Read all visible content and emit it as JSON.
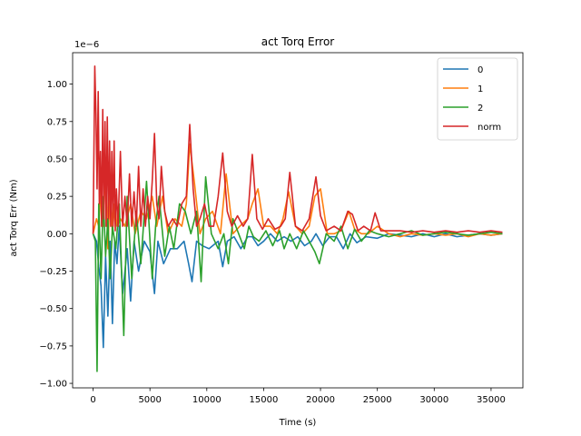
{
  "chart_data": {
    "type": "line",
    "title": "act Torq Error",
    "xlabel": "Time (s)",
    "ylabel": "act Torq Err (Nm)",
    "y_offset_text": "1e−6",
    "xlim": [
      -1800,
      37800
    ],
    "ylim": [
      -1.03,
      1.21
    ],
    "xticks": [
      0,
      5000,
      10000,
      15000,
      20000,
      25000,
      30000,
      35000
    ],
    "xtick_labels": [
      "0",
      "5000",
      "10000",
      "15000",
      "20000",
      "25000",
      "30000",
      "35000"
    ],
    "yticks": [
      -1.0,
      -0.75,
      -0.5,
      -0.25,
      0.0,
      0.25,
      0.5,
      0.75,
      1.0
    ],
    "ytick_labels": [
      "−1.00",
      "−0.75",
      "−0.50",
      "−0.25",
      "0.00",
      "0.25",
      "0.50",
      "0.75",
      "1.00"
    ],
    "grid": false,
    "legend_position": "top-right",
    "series": [
      {
        "name": "0",
        "color": "#1f77b4",
        "x": [
          0,
          300,
          500,
          700,
          900,
          1100,
          1300,
          1500,
          1700,
          1900,
          2100,
          2300,
          2600,
          3000,
          3300,
          3600,
          4000,
          4500,
          5000,
          5400,
          5700,
          6200,
          6800,
          7400,
          8000,
          8400,
          8700,
          9100,
          9600,
          10200,
          11000,
          11400,
          11800,
          12400,
          13000,
          13600,
          14000,
          14500,
          15000,
          15600,
          16200,
          16800,
          17400,
          18000,
          18600,
          19200,
          19600,
          20200,
          20800,
          21400,
          22000,
          22600,
          23200,
          24000,
          25000,
          26000,
          27000,
          28000,
          29000,
          30000,
          31000,
          32000,
          33000,
          34000,
          35000,
          36000
        ],
        "values": [
          0.0,
          -0.05,
          -0.22,
          -0.35,
          -0.76,
          -0.15,
          -0.55,
          -0.05,
          -0.6,
          -0.05,
          -0.2,
          0.05,
          -0.4,
          -0.1,
          -0.45,
          -0.05,
          -0.25,
          -0.05,
          -0.12,
          -0.4,
          -0.05,
          -0.2,
          -0.1,
          -0.1,
          -0.05,
          -0.2,
          -0.32,
          -0.05,
          -0.08,
          -0.1,
          -0.05,
          -0.22,
          -0.05,
          -0.02,
          -0.1,
          -0.02,
          -0.02,
          -0.08,
          -0.05,
          0.0,
          -0.05,
          -0.02,
          -0.05,
          -0.02,
          -0.08,
          -0.05,
          0.0,
          -0.08,
          -0.02,
          -0.02,
          -0.1,
          0.0,
          -0.06,
          -0.02,
          -0.03,
          0.0,
          -0.01,
          -0.02,
          0.0,
          -0.02,
          0.0,
          -0.02,
          -0.01,
          0.0,
          -0.01,
          0.0
        ]
      },
      {
        "name": "1",
        "color": "#ff7f0e",
        "x": [
          0,
          300,
          500,
          700,
          900,
          1100,
          1300,
          1500,
          1700,
          1900,
          2100,
          2400,
          2800,
          3300,
          3700,
          4200,
          4700,
          5200,
          5600,
          6100,
          6600,
          7200,
          7800,
          8200,
          8500,
          8900,
          9400,
          9900,
          10500,
          11200,
          11700,
          12300,
          12900,
          13600,
          14000,
          14500,
          15000,
          15600,
          16200,
          16700,
          17200,
          17800,
          18400,
          19000,
          19500,
          20000,
          20600,
          21200,
          21800,
          22500,
          23000,
          23600,
          24200,
          25000,
          26000,
          27000,
          28000,
          29000,
          30000,
          31000,
          32000,
          33000,
          34000,
          35000,
          36000
        ],
        "values": [
          0.0,
          0.1,
          0.05,
          0.3,
          0.05,
          0.45,
          -0.1,
          0.3,
          0.0,
          0.2,
          0.05,
          0.1,
          0.05,
          0.2,
          0.0,
          0.15,
          0.1,
          0.25,
          0.05,
          0.25,
          0.0,
          0.1,
          0.05,
          0.2,
          0.6,
          0.35,
          0.0,
          0.1,
          0.15,
          0.0,
          0.4,
          0.0,
          0.05,
          0.1,
          0.2,
          0.3,
          0.05,
          0.05,
          0.0,
          0.1,
          0.28,
          0.05,
          0.0,
          0.05,
          0.25,
          0.3,
          0.0,
          0.0,
          0.02,
          0.15,
          0.03,
          0.0,
          0.0,
          0.05,
          0.0,
          -0.02,
          0.0,
          -0.01,
          0.0,
          -0.01,
          0.0,
          -0.02,
          0.0,
          -0.01,
          0.0
        ]
      },
      {
        "name": "2",
        "color": "#2ca02c",
        "x": [
          0,
          200,
          350,
          500,
          700,
          900,
          1100,
          1300,
          1500,
          1700,
          2000,
          2300,
          2700,
          3000,
          3400,
          3800,
          4200,
          4700,
          5200,
          5500,
          5800,
          6300,
          6700,
          7100,
          7600,
          8100,
          8600,
          9100,
          9500,
          9900,
          10400,
          11000,
          11500,
          11900,
          12300,
          12800,
          13300,
          13700,
          14100,
          14600,
          15200,
          15800,
          16400,
          16800,
          17300,
          17900,
          18500,
          19000,
          19500,
          19900,
          20500,
          21200,
          21800,
          22400,
          23000,
          23600,
          24300,
          25000,
          26000,
          27000,
          28000,
          29000,
          30000,
          31000,
          32000,
          33000,
          34000,
          35000,
          36000
        ],
        "values": [
          0.0,
          -0.05,
          -0.92,
          0.2,
          -0.3,
          0.25,
          -0.15,
          0.1,
          -0.3,
          0.05,
          -0.1,
          0.2,
          -0.68,
          0.25,
          -0.3,
          0.15,
          -0.2,
          0.35,
          -0.3,
          0.05,
          0.25,
          -0.15,
          0.05,
          -0.1,
          0.2,
          0.15,
          0.0,
          0.15,
          -0.32,
          0.38,
          0.0,
          -0.1,
          0.0,
          -0.2,
          0.1,
          0.0,
          -0.1,
          0.05,
          -0.02,
          -0.05,
          0.02,
          -0.08,
          0.02,
          -0.1,
          0.0,
          -0.1,
          0.02,
          -0.05,
          -0.12,
          -0.2,
          0.0,
          -0.05,
          0.05,
          -0.1,
          0.03,
          -0.05,
          0.02,
          0.0,
          -0.02,
          0.0,
          0.02,
          -0.01,
          0.0,
          0.01,
          0.0,
          -0.01,
          0.0,
          0.01,
          0.0
        ]
      },
      {
        "name": "norm",
        "color": "#d62728",
        "x": [
          0,
          150,
          250,
          350,
          450,
          550,
          650,
          750,
          850,
          950,
          1050,
          1150,
          1250,
          1350,
          1450,
          1550,
          1650,
          1750,
          1850,
          1950,
          2050,
          2200,
          2400,
          2600,
          2800,
          3000,
          3200,
          3400,
          3600,
          3800,
          4000,
          4200,
          4400,
          4600,
          4800,
          5000,
          5200,
          5400,
          5600,
          5800,
          6000,
          6300,
          6600,
          7000,
          7400,
          7800,
          8200,
          8500,
          8800,
          9100,
          9400,
          9800,
          10200,
          10600,
          11000,
          11400,
          11800,
          12200,
          12700,
          13200,
          13600,
          14000,
          14400,
          14900,
          15400,
          16000,
          16500,
          16900,
          17300,
          17800,
          18400,
          19000,
          19600,
          20000,
          20500,
          21200,
          21800,
          22400,
          22800,
          23300,
          23800,
          24400,
          24800,
          25300,
          26000,
          27000,
          28000,
          29000,
          30000,
          31000,
          32000,
          33000,
          34000,
          35000,
          36000
        ],
        "values": [
          0.0,
          1.12,
          0.8,
          0.3,
          0.95,
          0.2,
          0.55,
          0.05,
          0.83,
          0.1,
          0.75,
          0.05,
          0.78,
          0.1,
          0.62,
          0.05,
          0.55,
          0.05,
          0.62,
          0.02,
          0.3,
          0.05,
          0.55,
          0.05,
          0.25,
          0.05,
          0.4,
          0.05,
          0.28,
          0.05,
          0.45,
          0.05,
          0.3,
          0.05,
          0.25,
          0.1,
          0.35,
          0.67,
          0.2,
          0.1,
          0.45,
          0.15,
          0.05,
          0.1,
          0.05,
          0.2,
          0.25,
          0.73,
          0.3,
          0.05,
          0.1,
          0.2,
          0.05,
          0.05,
          0.25,
          0.54,
          0.15,
          0.05,
          0.12,
          0.05,
          0.1,
          0.53,
          0.1,
          0.03,
          0.1,
          0.03,
          0.05,
          0.1,
          0.41,
          0.05,
          0.02,
          0.1,
          0.38,
          0.12,
          0.02,
          0.05,
          0.02,
          0.15,
          0.13,
          0.02,
          0.05,
          0.02,
          0.14,
          0.02,
          0.02,
          0.02,
          0.01,
          0.02,
          0.01,
          0.02,
          0.01,
          0.02,
          0.01,
          0.02,
          0.01
        ]
      }
    ]
  }
}
